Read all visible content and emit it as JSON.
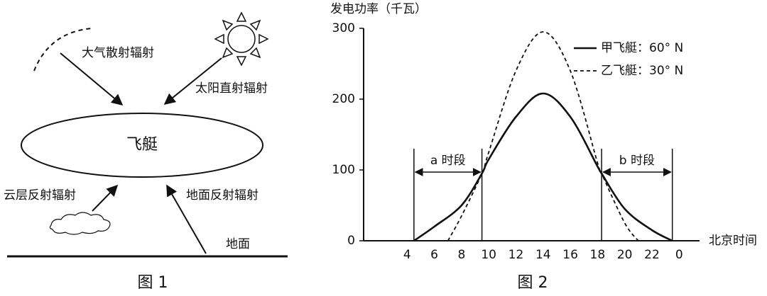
{
  "diagram": {
    "labels": {
      "scatter": "大气散射辐射",
      "direct": "太阳直射辐射",
      "airship": "飞艇",
      "cloud": "云层反射辐射",
      "ground_reflect": "地面反射辐射",
      "ground": "地面"
    },
    "caption": "图 1"
  },
  "chart_data": {
    "type": "line",
    "y_label": "发电功率（千瓦）",
    "x_label": "北京时间",
    "caption": "图 2",
    "xlim": [
      0.8,
      25.5
    ],
    "xticks": [
      4,
      6,
      8,
      10,
      12,
      14,
      16,
      18,
      20,
      22,
      {
        "value": 24,
        "label": "0"
      }
    ],
    "ylim": [
      0,
      300
    ],
    "yticks": [
      0,
      100,
      200,
      300
    ],
    "legend": "upper right",
    "annotations": [
      "a 时段",
      "b 时段"
    ],
    "series": [
      {
        "name": "甲飞艇：60° N",
        "color": "#111111",
        "line_style": "solid",
        "x": [
          4.5,
          6,
          8,
          9.5,
          10,
          12,
          14,
          16,
          18,
          18.3,
          20,
          22,
          23.5
        ],
        "values": [
          0,
          20,
          50,
          95,
          115,
          175,
          208,
          175,
          105,
          95,
          45,
          15,
          0
        ]
      },
      {
        "name": "乙飞艇：30° N",
        "color": "#111111",
        "line_style": "dashed",
        "x": [
          7,
          8,
          9.5,
          10,
          12,
          14,
          16,
          18,
          18.3,
          20,
          21
        ],
        "values": [
          0,
          35,
          95,
          125,
          240,
          295,
          240,
          110,
          95,
          25,
          0
        ]
      }
    ]
  }
}
